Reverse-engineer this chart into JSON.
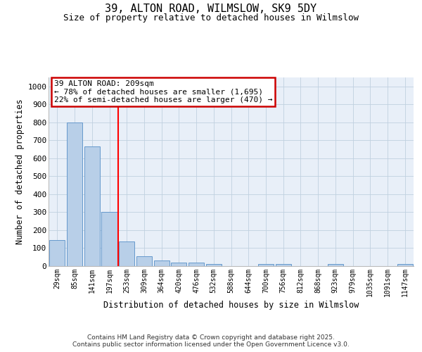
{
  "title": "39, ALTON ROAD, WILMSLOW, SK9 5DY",
  "subtitle": "Size of property relative to detached houses in Wilmslow",
  "xlabel": "Distribution of detached houses by size in Wilmslow",
  "ylabel": "Number of detached properties",
  "bar_labels": [
    "29sqm",
    "85sqm",
    "141sqm",
    "197sqm",
    "253sqm",
    "309sqm",
    "364sqm",
    "420sqm",
    "476sqm",
    "532sqm",
    "588sqm",
    "644sqm",
    "700sqm",
    "756sqm",
    "812sqm",
    "868sqm",
    "923sqm",
    "979sqm",
    "1035sqm",
    "1091sqm",
    "1147sqm"
  ],
  "bar_values": [
    145,
    800,
    665,
    300,
    135,
    52,
    30,
    18,
    18,
    11,
    0,
    0,
    10,
    10,
    0,
    0,
    8,
    0,
    0,
    0,
    8
  ],
  "bar_color": "#b8cfe8",
  "bar_edge_color": "#6699cc",
  "ylim_max": 1050,
  "yticks": [
    0,
    100,
    200,
    300,
    400,
    500,
    600,
    700,
    800,
    900,
    1000
  ],
  "red_line_x": 3.5,
  "annotation_text": "39 ALTON ROAD: 209sqm\n← 78% of detached houses are smaller (1,695)\n22% of semi-detached houses are larger (470) →",
  "bg_plot": "#e8eff8",
  "bg_fig": "#ffffff",
  "grid_color": "#c0d0e0",
  "footer_line1": "Contains HM Land Registry data © Crown copyright and database right 2025.",
  "footer_line2": "Contains public sector information licensed under the Open Government Licence v3.0."
}
